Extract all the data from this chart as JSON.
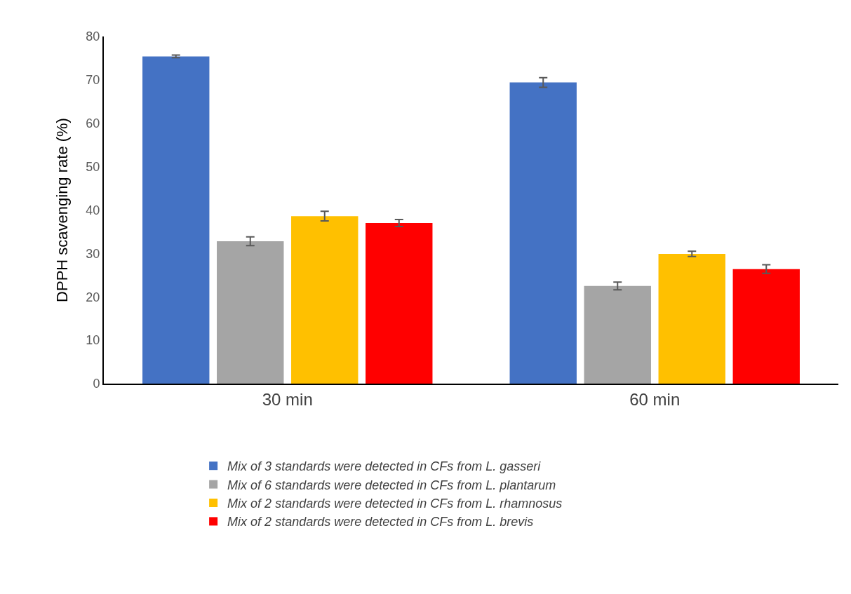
{
  "chart_data": {
    "type": "bar",
    "ylabel": "DPPH scavenging rate (%)",
    "categories": [
      "30 min",
      "60 min"
    ],
    "series": [
      {
        "name": "Mix of 3 standards were detected in CFs from L. gasseri",
        "color": "#4472c4",
        "values": [
          75.4,
          69.4
        ],
        "errors": [
          0.3,
          1.1
        ]
      },
      {
        "name": "Mix of 6 standards were detected in CFs from L. plantarum",
        "color": "#a5a5a5",
        "values": [
          32.8,
          22.5
        ],
        "errors": [
          1.0,
          0.9
        ]
      },
      {
        "name": "Mix of 2 standards were detected in CFs from L. rhamnosus",
        "color": "#ffc000",
        "values": [
          38.6,
          29.9
        ],
        "errors": [
          1.1,
          0.6
        ]
      },
      {
        "name": "Mix of 2 standards were detected in CFs from L. brevis",
        "color": "#ff0000",
        "values": [
          37.0,
          26.4
        ],
        "errors": [
          0.8,
          1.0
        ]
      }
    ],
    "ylim": [
      0,
      80
    ],
    "yticks": [
      0,
      10,
      20,
      30,
      40,
      50,
      60,
      70,
      80
    ],
    "grid": false,
    "legend": "bottom"
  }
}
